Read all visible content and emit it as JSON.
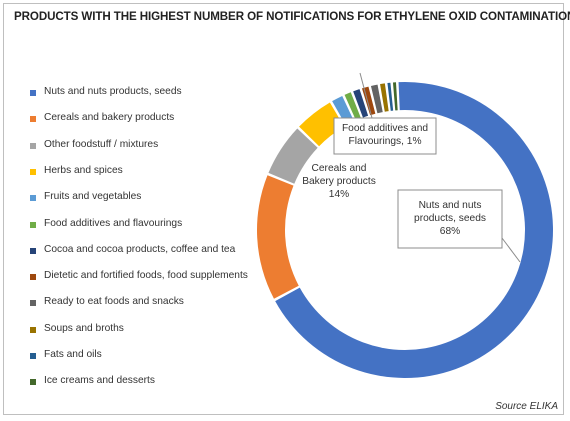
{
  "chart_data": {
    "type": "pie",
    "title": "PRODUCTS WITH THE HIGHEST NUMBER OF NOTIFICATIONS FOR ETHYLENE OXID CONTAMINATION",
    "legend_position": "left",
    "categories": [
      "Nuts and nuts products, seeds",
      "Cereals and bakery products",
      "Other foodstuff / mixtures",
      "Herbs and spices",
      "Fruits and vegetables",
      "Food additives and flavourings",
      "Cocoa and cocoa products, coffee and tea",
      "Dietetic and fortified foods, food supplements",
      "Ready to eat foods and snacks",
      "Soups and broths",
      "Fats and oils",
      "Ice creams and desserts"
    ],
    "values": [
      68,
      14,
      6,
      4.5,
      1.5,
      1,
      1,
      1,
      1,
      0.8,
      0.6,
      0.6
    ],
    "colors": [
      "#4472c4",
      "#ed7d31",
      "#a5a5a5",
      "#ffc000",
      "#5b9bd5",
      "#70ad47",
      "#264478",
      "#9e480e",
      "#636363",
      "#997300",
      "#255e91",
      "#43682b"
    ],
    "data_labels": [
      {
        "category": "Nuts and nuts products, seeds",
        "lines": [
          "Nuts and nuts",
          "products, seeds",
          "68%"
        ]
      },
      {
        "category": "Cereals and bakery products",
        "lines": [
          "Cereals and",
          "Bakery products",
          "14%"
        ]
      },
      {
        "category": "Food additives and flavourings",
        "lines": [
          "Food additives and",
          "Flavourings, 1%"
        ]
      }
    ]
  },
  "source": "Source ELIKA"
}
